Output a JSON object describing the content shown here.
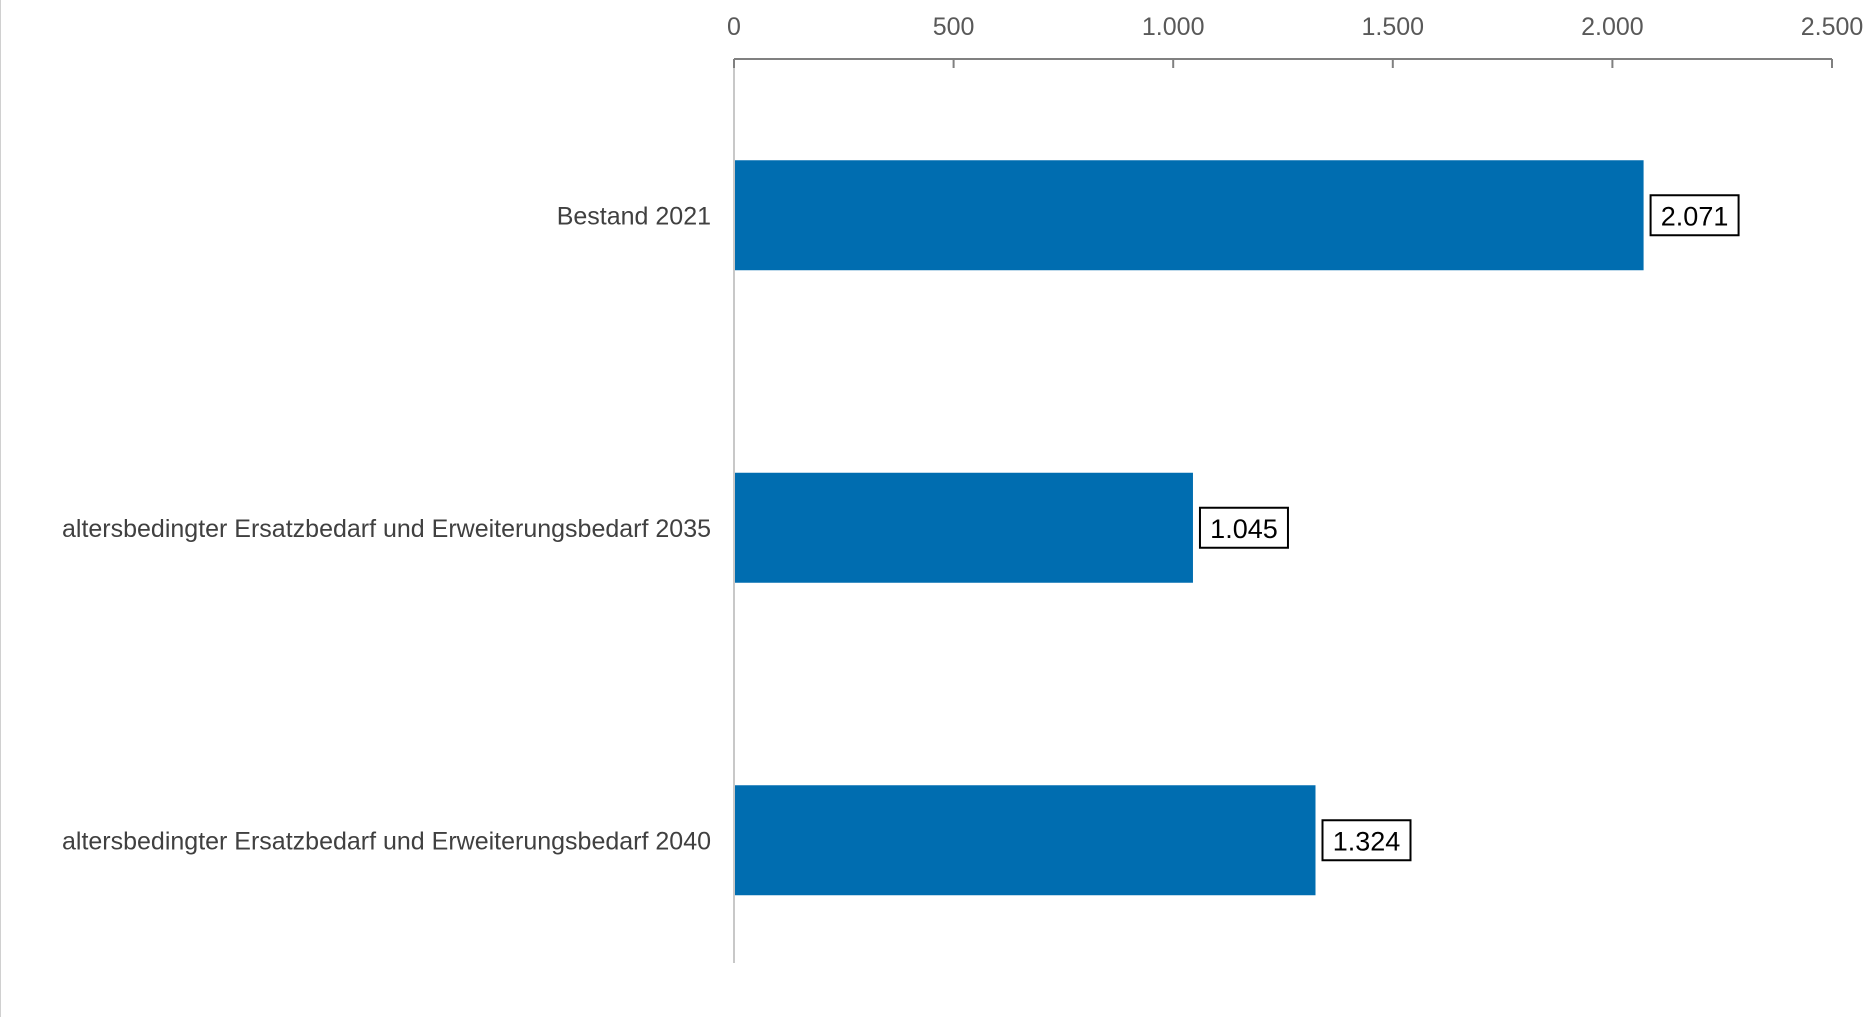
{
  "chart_data": {
    "type": "bar",
    "orientation": "horizontal",
    "title": "",
    "xlabel": "",
    "ylabel": "",
    "categories": [
      "Bestand 2021",
      "altersbedingter Ersatzbedarf und Erweiterungsbedarf 2035",
      "altersbedingter Ersatzbedarf und Erweiterungsbedarf 2040"
    ],
    "values": [
      2071,
      1045,
      1324
    ],
    "value_labels": [
      "2.071",
      "1.045",
      "1.324"
    ],
    "xlim": [
      0,
      2500
    ],
    "x_ticks": [
      0,
      500,
      1000,
      1500,
      2000,
      2500
    ],
    "x_tick_labels": [
      "0",
      "500",
      "1.000",
      "1.500",
      "2.000",
      "2.500"
    ],
    "x_axis_position": "top",
    "grid": false,
    "legend": "none",
    "bar_color": "#006DB0"
  }
}
